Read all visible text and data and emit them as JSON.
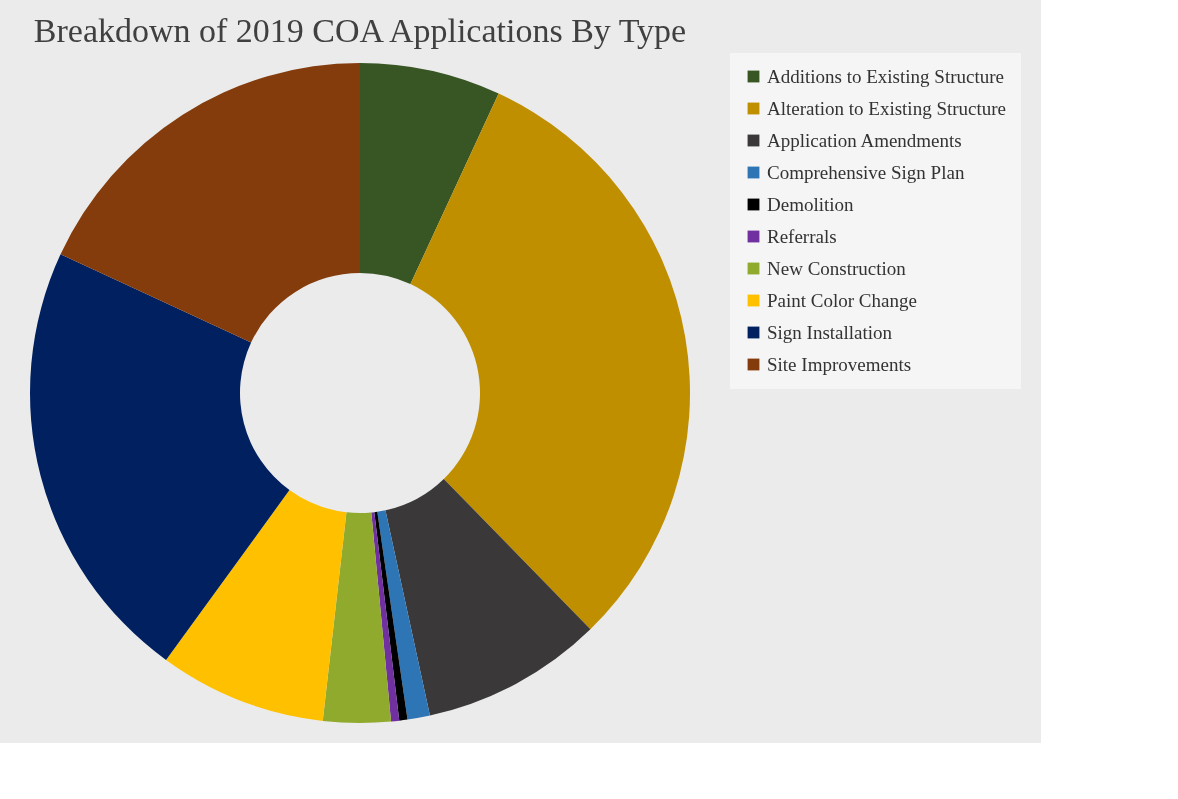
{
  "chart_data": {
    "type": "donut",
    "title": "Breakdown of 2019 COA Applications By Type",
    "categories": [
      "Additions to Existing Structure",
      "Alteration to Existing Structure",
      "Application Amendments",
      "Comprehensive Sign Plan",
      "Demolition",
      "Referrals",
      "New Construction",
      "Paint Color Change",
      "Sign Installation",
      "Site Improvements"
    ],
    "values": [
      6.9,
      30.8,
      8.9,
      1.1,
      0.4,
      0.4,
      3.3,
      8.2,
      21.9,
      18.1
    ],
    "colors": [
      "#375623",
      "#bf8f00",
      "#3a3838",
      "#2e75b6",
      "#000000",
      "#7030a0",
      "#8faa2c",
      "#ffc000",
      "#002060",
      "#843c0c"
    ],
    "legend": "right"
  }
}
